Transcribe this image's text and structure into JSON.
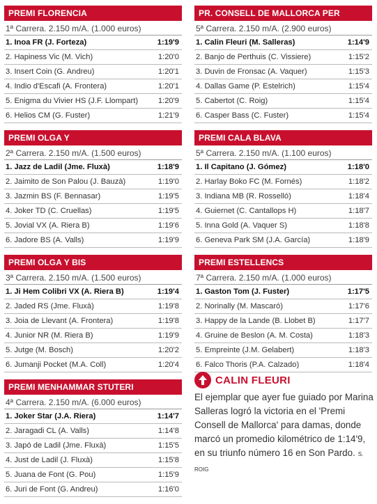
{
  "races": [
    {
      "title": "PREMI FLORENCIA",
      "subtitle": "1ª Carrera. 2.150 m/A. (1.000 euros)",
      "rows": [
        {
          "name": "1. Inoa FR (J. Forteza)",
          "time": "1:19'9"
        },
        {
          "name": "2. Hapiness Vic (M. Vich)",
          "time": "1:20'0"
        },
        {
          "name": "3. Insert Coin (G. Andreu)",
          "time": "1:20'1"
        },
        {
          "name": "4. Indio d'Escafi (A. Frontera)",
          "time": "1:20'1"
        },
        {
          "name": "5. Enigma du Vivier HS (J.F. Llompart)",
          "time": "1:20'9"
        },
        {
          "name": "6. Helios CM (G. Fuster)",
          "time": "1:21'9"
        }
      ]
    },
    {
      "title": "PREMI OLGA Y",
      "subtitle": "2ª Carrera. 2.150 m/A. (1.500 euros)",
      "rows": [
        {
          "name": "1. Jazz de Ladil (Jme. Fluxà)",
          "time": "1:18'9"
        },
        {
          "name": "2. Jaimito de Son Palou (J. Bauzà)",
          "time": "1:19'0"
        },
        {
          "name": "3. Jazmin BS (F. Bennasar)",
          "time": "1:19'5"
        },
        {
          "name": "4. Joker TD (C. Cruellas)",
          "time": "1:19'5"
        },
        {
          "name": "5. Jovial VX (A. Riera B)",
          "time": "1:19'6"
        },
        {
          "name": "6. Jadore BS (A. Valls)",
          "time": "1:19'9"
        }
      ]
    },
    {
      "title": "PREMI OLGA Y BIS",
      "subtitle": "3ª Carrera. 2.150 m/A. (1.500 euros)",
      "rows": [
        {
          "name": "1. Ji Hem Colibri VX (A. Riera B)",
          "time": "1:19'4"
        },
        {
          "name": "2. Jaded RS (Jme. Fluxà)",
          "time": "1:19'8"
        },
        {
          "name": "3. Joia de Llevant (A. Frontera)",
          "time": "1:19'8"
        },
        {
          "name": "4. Junior NR (M. Riera B)",
          "time": "1:19'9"
        },
        {
          "name": "5. Jutge (M. Bosch)",
          "time": "1:20'2"
        },
        {
          "name": "6. Jumanji Pocket (M.A. Coll)",
          "time": "1:20'4"
        }
      ]
    },
    {
      "title": "PREMI MENHAMMAR STUTERI",
      "subtitle": "4ª Carrera. 2.150 m/A. (6.000 euros)",
      "rows": [
        {
          "name": "1. Joker Star (J.A. Riera)",
          "time": "1:14'7"
        },
        {
          "name": "2. Jaragadi CL (A. Valls)",
          "time": "1:14'8"
        },
        {
          "name": "3. Japó de Ladil (Jme. Fluxà)",
          "time": "1:15'5"
        },
        {
          "name": "4. Just de Ladil (J. Fluxà)",
          "time": "1:15'8"
        },
        {
          "name": "5. Juana de Font (G. Pou)",
          "time": "1:15'9"
        },
        {
          "name": "6. Juri de Font (G. Andreu)",
          "time": "1:16'0"
        }
      ]
    },
    {
      "title": "PR. CONSELL DE MALLORCA PER DAMES",
      "subtitle": "5ª Carrera. 2.150 m/A. (2.900 euros)",
      "rows": [
        {
          "name": "1. Calin Fleuri (M. Salleras)",
          "time": "1:14'9"
        },
        {
          "name": "2. Banjo de Perthuis (C. Vissiere)",
          "time": "1:15'2"
        },
        {
          "name": "3. Duvin de Fronsac (A. Vaquer)",
          "time": "1:15'3"
        },
        {
          "name": "4. Dallas Game (P. Estelrich)",
          "time": "1:15'4"
        },
        {
          "name": "5. Cabertot (C. Roig)",
          "time": "1:15'4"
        },
        {
          "name": "6. Casper Bass (C. Fuster)",
          "time": "1:15'4"
        }
      ]
    },
    {
      "title": "PREMI CALA BLAVA",
      "subtitle": "5ª Carrera. 2.150 m/A. (1.100 euros)",
      "rows": [
        {
          "name": "1. Il Capitano (J. Gómez)",
          "time": "1:18'0"
        },
        {
          "name": "2. Harlay Boko FC (M. Fornés)",
          "time": "1:18'2"
        },
        {
          "name": "3. Indiana MB (R. Rosselló)",
          "time": "1:18'4"
        },
        {
          "name": "4. Guiernet (C. Cantallops H)",
          "time": "1:18'7"
        },
        {
          "name": "5. Inna Gold (A. Vaquer S)",
          "time": "1:18'8"
        },
        {
          "name": "6. Geneva Park SM (J.A. García)",
          "time": "1:18'9"
        }
      ]
    },
    {
      "title": "PREMI ESTELLENCS",
      "subtitle": "7ª Carrera. 2.150 m/A. (1.000 euros)",
      "rows": [
        {
          "name": "1. Gaston Tom (J. Fuster)",
          "time": "1:17'5"
        },
        {
          "name": "2. Norinally (M. Mascaró)",
          "time": "1:17'6"
        },
        {
          "name": "3. Happy de la Lande (B. Llobet B)",
          "time": "1:17'7"
        },
        {
          "name": "4. Gruine de Beslon (A. M. Costa)",
          "time": "1:18'3"
        },
        {
          "name": "5. Empreinte (J.M. Gelabert)",
          "time": "1:18'3"
        },
        {
          "name": "6. Falco Thoris (P.A. Calzado)",
          "time": "1:18'4"
        }
      ]
    }
  ],
  "note": {
    "title": "CALIN FLEURI",
    "text": "El ejemplar que ayer fue guiado por Marina Salleras logró la victoria en el 'Premi Consell de Mallorca' para damas, donde marcó un promedio kilométrico de 1:14'9, en su triunfo número 16 en Son Pardo.",
    "credit": "S. ROIG",
    "icon": "up-arrow-icon"
  },
  "colors": {
    "accent": "#c8102e",
    "text": "#333333",
    "rule": "#b9b9b9"
  }
}
